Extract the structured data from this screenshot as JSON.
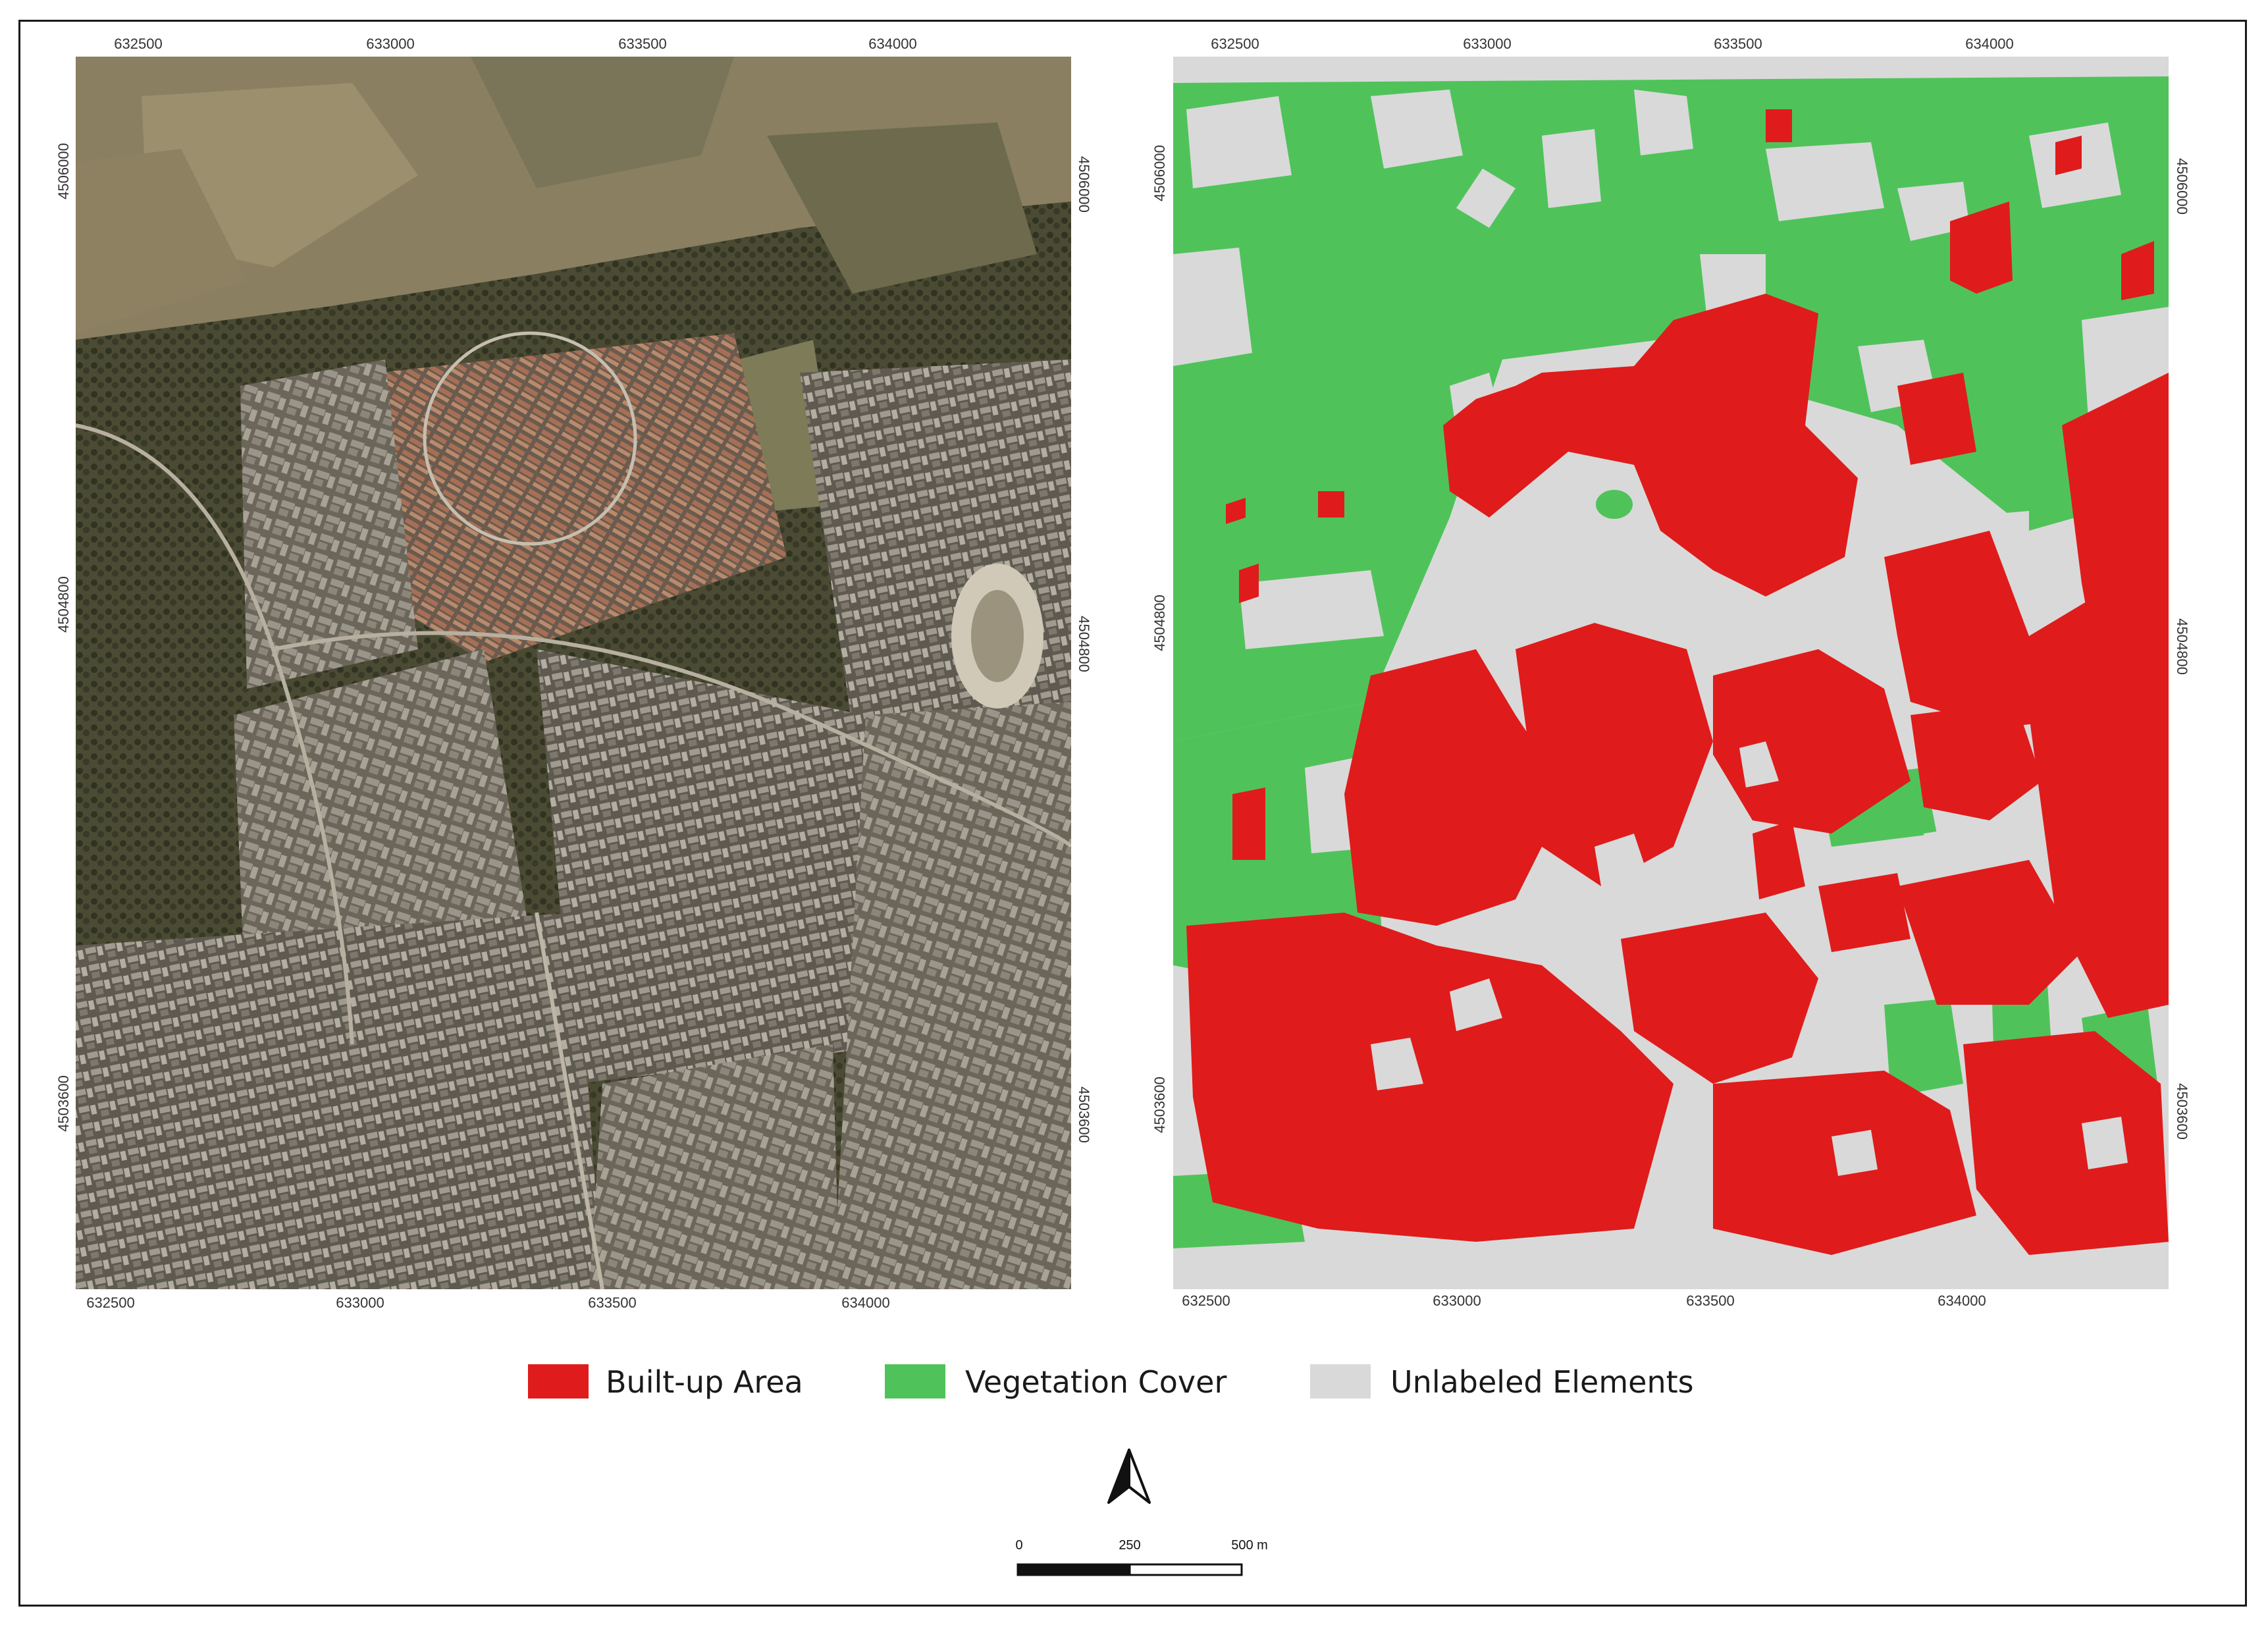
{
  "legend": {
    "items": [
      {
        "label": "Built-up Area",
        "color": "#e01b1b"
      },
      {
        "label": "Vegetation Cover",
        "color": "#4fc35a"
      },
      {
        "label": "Unlabeled Elements",
        "color": "#d9d9d9"
      }
    ]
  },
  "aerial_map": {
    "x_ticks_top": [
      "632500",
      "633000",
      "633500",
      "634000"
    ],
    "x_ticks_bottom": [
      "632500",
      "633000",
      "633500",
      "634000"
    ],
    "y_ticks_left": [
      "4506000",
      "4504800",
      "4503600"
    ],
    "y_ticks_right": [
      "4506000",
      "4504800",
      "4503600"
    ]
  },
  "classification_map": {
    "x_ticks_top": [
      "632500",
      "633000",
      "633500",
      "634000"
    ],
    "x_ticks_bottom": [
      "632500",
      "633000",
      "633500",
      "634000"
    ],
    "y_ticks_left": [
      "4506000",
      "4504800",
      "4503600"
    ],
    "y_ticks_right": [
      "4506000",
      "4504800",
      "4503600"
    ]
  },
  "scale_bar": {
    "labels": [
      "0",
      "250",
      "500 m"
    ]
  },
  "north_arrow": {
    "icon": "north-arrow-icon"
  }
}
